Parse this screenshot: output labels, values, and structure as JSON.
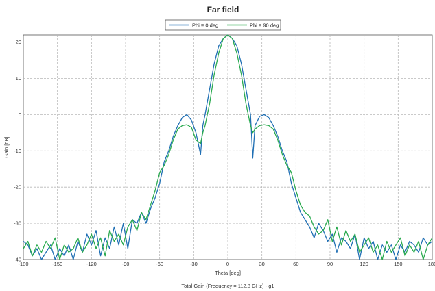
{
  "chart_data": {
    "type": "line",
    "title": "Far field",
    "xlabel": "Theta [deg]",
    "ylabel": "Gain [dB]",
    "footer": "Total Gain (Frequency = 112.8 GHz) - g1",
    "xlim": [
      -180,
      180
    ],
    "ylim": [
      -40,
      22
    ],
    "x_ticks": [
      -180,
      -150,
      -120,
      -90,
      -60,
      -30,
      0,
      30,
      60,
      90,
      120,
      150,
      180
    ],
    "x_tick_labels": [
      "-180",
      "-150",
      "-120",
      "-90",
      "-60",
      "-30",
      "0",
      "30",
      "60",
      "90",
      "120",
      "150",
      "180"
    ],
    "y_ticks": [
      -40,
      -30,
      -20,
      -10,
      0,
      10,
      20
    ],
    "y_tick_labels": [
      "-40",
      "-30",
      "-20",
      "-10",
      "0",
      "10",
      "20"
    ],
    "grid": true,
    "legend_position": "top-center",
    "series": [
      {
        "name": "Phi = 0 deg",
        "color": "#1f6fb4",
        "x": [
          -180,
          -176,
          -172,
          -168,
          -164,
          -160,
          -156,
          -152,
          -148,
          -144,
          -140,
          -136,
          -132,
          -128,
          -124,
          -120,
          -116,
          -112,
          -108,
          -104,
          -100,
          -96,
          -92,
          -88,
          -84,
          -80,
          -76,
          -72,
          -68,
          -64,
          -60,
          -56,
          -52,
          -48,
          -44,
          -40,
          -36,
          -32,
          -28,
          -24,
          -22,
          -20,
          -16,
          -12,
          -8,
          -4,
          0,
          4,
          8,
          12,
          16,
          20,
          22,
          24,
          28,
          32,
          36,
          40,
          44,
          48,
          52,
          56,
          60,
          64,
          68,
          72,
          76,
          80,
          84,
          88,
          92,
          96,
          100,
          104,
          108,
          112,
          116,
          120,
          124,
          128,
          132,
          136,
          140,
          144,
          148,
          152,
          156,
          160,
          164,
          168,
          172,
          176,
          180
        ],
        "y": [
          -35,
          -36,
          -39,
          -37,
          -40,
          -38,
          -36,
          -40,
          -37,
          -39,
          -36,
          -40,
          -35,
          -38,
          -33,
          -36,
          -32,
          -39,
          -34,
          -37,
          -31,
          -36,
          -30,
          -37,
          -29,
          -30,
          -27,
          -30,
          -26,
          -23,
          -19,
          -13,
          -10,
          -6,
          -3,
          -0.8,
          0,
          -1.5,
          -5,
          -11,
          -3,
          0,
          7,
          14,
          19,
          21,
          22,
          21,
          19,
          14,
          7,
          0,
          -12,
          -3,
          -0.5,
          0,
          -0.8,
          -3,
          -6,
          -10,
          -13,
          -19,
          -23,
          -27,
          -29,
          -31,
          -34,
          -30,
          -32,
          -35,
          -33,
          -38,
          -34,
          -35,
          -37,
          -33,
          -40,
          -34,
          -37,
          -35,
          -40,
          -36,
          -38,
          -36,
          -40,
          -36,
          -38,
          -35,
          -36,
          -38,
          -34,
          -36,
          -35
        ],
        "values": [
          -35,
          -36,
          -39,
          -37,
          -40,
          -38,
          -36,
          -40,
          -37,
          -39,
          -36,
          -40,
          -35,
          -38,
          -33,
          -36,
          -32,
          -39,
          -34,
          -37,
          -31,
          -36,
          -30,
          -37,
          -29,
          -30,
          -27,
          -30,
          -26,
          -23,
          -19,
          -13,
          -10,
          -6,
          -3,
          -0.8,
          0,
          -1.5,
          -5,
          -11,
          -3,
          0,
          7,
          14,
          19,
          21,
          22,
          21,
          19,
          14,
          7,
          0,
          -12,
          -3,
          -0.5,
          0,
          -0.8,
          -3,
          -6,
          -10,
          -13,
          -19,
          -23,
          -27,
          -29,
          -31,
          -34,
          -30,
          -32,
          -35,
          -33,
          -38,
          -34,
          -35,
          -37,
          -33,
          -40,
          -34,
          -37,
          -35,
          -40,
          -36,
          -38,
          -36,
          -40,
          -36,
          -38,
          -35,
          -36,
          -38,
          -34,
          -36,
          -35
        ]
      },
      {
        "name": "Phi = 90 deg",
        "color": "#2aaa4f",
        "x": [
          -180,
          -176,
          -172,
          -168,
          -164,
          -160,
          -156,
          -152,
          -148,
          -144,
          -140,
          -136,
          -132,
          -128,
          -124,
          -120,
          -116,
          -112,
          -108,
          -104,
          -100,
          -96,
          -92,
          -88,
          -84,
          -80,
          -76,
          -72,
          -68,
          -64,
          -60,
          -56,
          -52,
          -48,
          -44,
          -40,
          -36,
          -32,
          -28,
          -24,
          -22,
          -20,
          -16,
          -12,
          -8,
          -4,
          0,
          4,
          8,
          12,
          16,
          20,
          22,
          24,
          28,
          32,
          36,
          40,
          44,
          48,
          52,
          56,
          60,
          64,
          68,
          72,
          76,
          80,
          84,
          88,
          92,
          96,
          100,
          104,
          108,
          112,
          116,
          120,
          124,
          128,
          132,
          136,
          140,
          144,
          148,
          152,
          156,
          160,
          164,
          168,
          172,
          176,
          180
        ],
        "y": [
          -37,
          -35,
          -39,
          -36,
          -38,
          -35,
          -37,
          -34,
          -40,
          -36,
          -38,
          -37,
          -34,
          -38,
          -36,
          -33,
          -37,
          -34,
          -39,
          -32,
          -35,
          -33,
          -36,
          -31,
          -29,
          -32,
          -27,
          -29,
          -25,
          -21,
          -16,
          -14,
          -11,
          -7,
          -4,
          -3,
          -2.8,
          -3.5,
          -7,
          -8,
          -5,
          -3,
          3,
          11,
          17,
          21,
          22,
          21,
          17,
          11,
          3,
          -3,
          -5,
          -4,
          -3,
          -2.8,
          -3,
          -4,
          -7,
          -11,
          -14,
          -16,
          -21,
          -25,
          -27,
          -28,
          -31,
          -33,
          -32,
          -29,
          -35,
          -31,
          -36,
          -32,
          -35,
          -33,
          -38,
          -36,
          -34,
          -38,
          -36,
          -40,
          -35,
          -38,
          -36,
          -34,
          -39,
          -36,
          -38,
          -35,
          -40,
          -36,
          -34
        ],
        "values": [
          -37,
          -35,
          -39,
          -36,
          -38,
          -35,
          -37,
          -34,
          -40,
          -36,
          -38,
          -37,
          -34,
          -38,
          -36,
          -33,
          -37,
          -34,
          -39,
          -32,
          -35,
          -33,
          -36,
          -31,
          -29,
          -32,
          -27,
          -29,
          -25,
          -21,
          -16,
          -14,
          -11,
          -7,
          -4,
          -3,
          -2.8,
          -3.5,
          -7,
          -8,
          -5,
          -3,
          3,
          11,
          17,
          21,
          22,
          21,
          17,
          11,
          3,
          -3,
          -5,
          -4,
          -3,
          -2.8,
          -3,
          -4,
          -7,
          -11,
          -14,
          -16,
          -21,
          -25,
          -27,
          -28,
          -31,
          -33,
          -32,
          -29,
          -35,
          -31,
          -36,
          -32,
          -35,
          -33,
          -38,
          -36,
          -34,
          -38,
          -36,
          -40,
          -35,
          -38,
          -36,
          -34,
          -39,
          -36,
          -38,
          -35,
          -40,
          -36,
          -34
        ]
      }
    ]
  }
}
